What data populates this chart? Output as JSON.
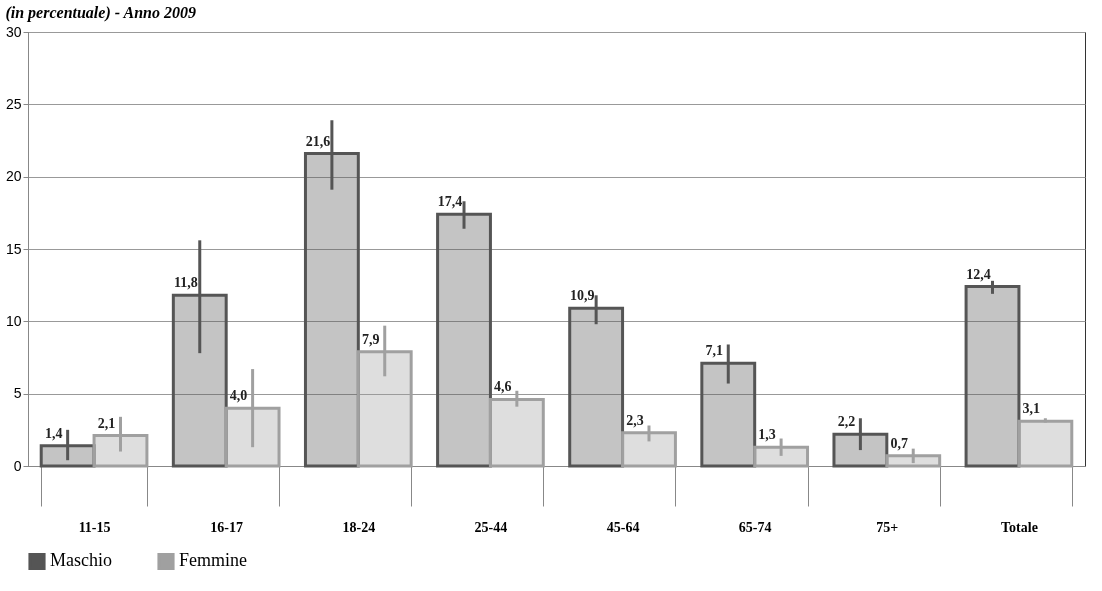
{
  "chart_data": {
    "type": "bar",
    "title": "(in percentuale) - Anno 2009",
    "categories": [
      "11-15",
      "16-17",
      "18-24",
      "25-44",
      "45-64",
      "65-74",
      "75+",
      "Totale"
    ],
    "series": [
      {
        "name": "Maschio",
        "color": "#555555",
        "values": [
          1.4,
          11.8,
          21.6,
          17.4,
          10.9,
          7.1,
          2.2,
          12.4
        ],
        "value_labels": [
          "1,4",
          "11,8",
          "21,6",
          "17,4",
          "10,9",
          "7,1",
          "2,2",
          "12,4"
        ],
        "errors": [
          [
            0.4,
            2.5
          ],
          [
            7.8,
            15.6
          ],
          [
            19.1,
            23.9
          ],
          [
            16.4,
            18.3
          ],
          [
            9.8,
            11.8
          ],
          [
            5.7,
            8.4
          ],
          [
            1.1,
            3.3
          ],
          [
            11.9,
            12.8
          ]
        ]
      },
      {
        "name": "Femmine",
        "color": "#a0a0a0",
        "values": [
          2.1,
          4.0,
          7.9,
          4.6,
          2.3,
          1.3,
          0.7,
          3.1
        ],
        "value_labels": [
          "2,1",
          "4,0",
          "7,9",
          "4,6",
          "2,3",
          "1,3",
          "0,7",
          "3,1"
        ],
        "errors": [
          [
            1.0,
            3.4
          ],
          [
            1.3,
            6.7
          ],
          [
            6.2,
            9.7
          ],
          [
            4.1,
            5.2
          ],
          [
            1.7,
            2.8
          ],
          [
            0.7,
            1.9
          ],
          [
            0.2,
            1.2
          ],
          [
            3.0,
            3.3
          ]
        ]
      }
    ],
    "ylim": [
      0,
      30
    ],
    "yticks": [
      0,
      5,
      10,
      15,
      20,
      25,
      30
    ],
    "grid": "y",
    "legend": "bottom"
  }
}
